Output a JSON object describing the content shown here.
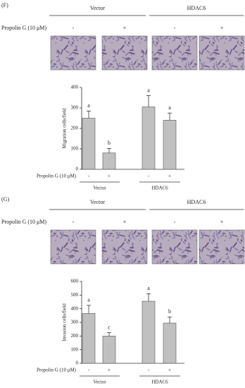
{
  "chart_data": [
    {
      "type": "bar",
      "panel_label": "(F)",
      "groups": [
        "Vector",
        "HDAC6"
      ],
      "treatment_label": "Propolin G (10 μM)",
      "categories": [
        "-",
        "+",
        "-",
        "+"
      ],
      "values": [
        250,
        80,
        305,
        240
      ],
      "errors": [
        35,
        22,
        55,
        35
      ],
      "annotations": [
        "a",
        "b",
        "a",
        "a"
      ],
      "ylabel": "Migration cells/field",
      "ylim": [
        0,
        400
      ],
      "yticks": [
        0,
        100,
        200,
        300,
        400
      ],
      "color": "#c0c0c0"
    },
    {
      "type": "bar",
      "panel_label": "(G)",
      "groups": [
        "Vector",
        "HDAC6"
      ],
      "treatment_label": "Propolin G (10 μM)",
      "categories": [
        "-",
        "+",
        "-",
        "+"
      ],
      "values": [
        365,
        200,
        455,
        295
      ],
      "errors": [
        60,
        25,
        55,
        45
      ],
      "annotations": [
        "a",
        "c",
        "a",
        "b"
      ],
      "ylabel": "Invasion cells/field",
      "ylim": [
        0,
        600
      ],
      "yticks": [
        0,
        100,
        200,
        300,
        400,
        500,
        600
      ],
      "color": "#c0c0c0"
    }
  ]
}
